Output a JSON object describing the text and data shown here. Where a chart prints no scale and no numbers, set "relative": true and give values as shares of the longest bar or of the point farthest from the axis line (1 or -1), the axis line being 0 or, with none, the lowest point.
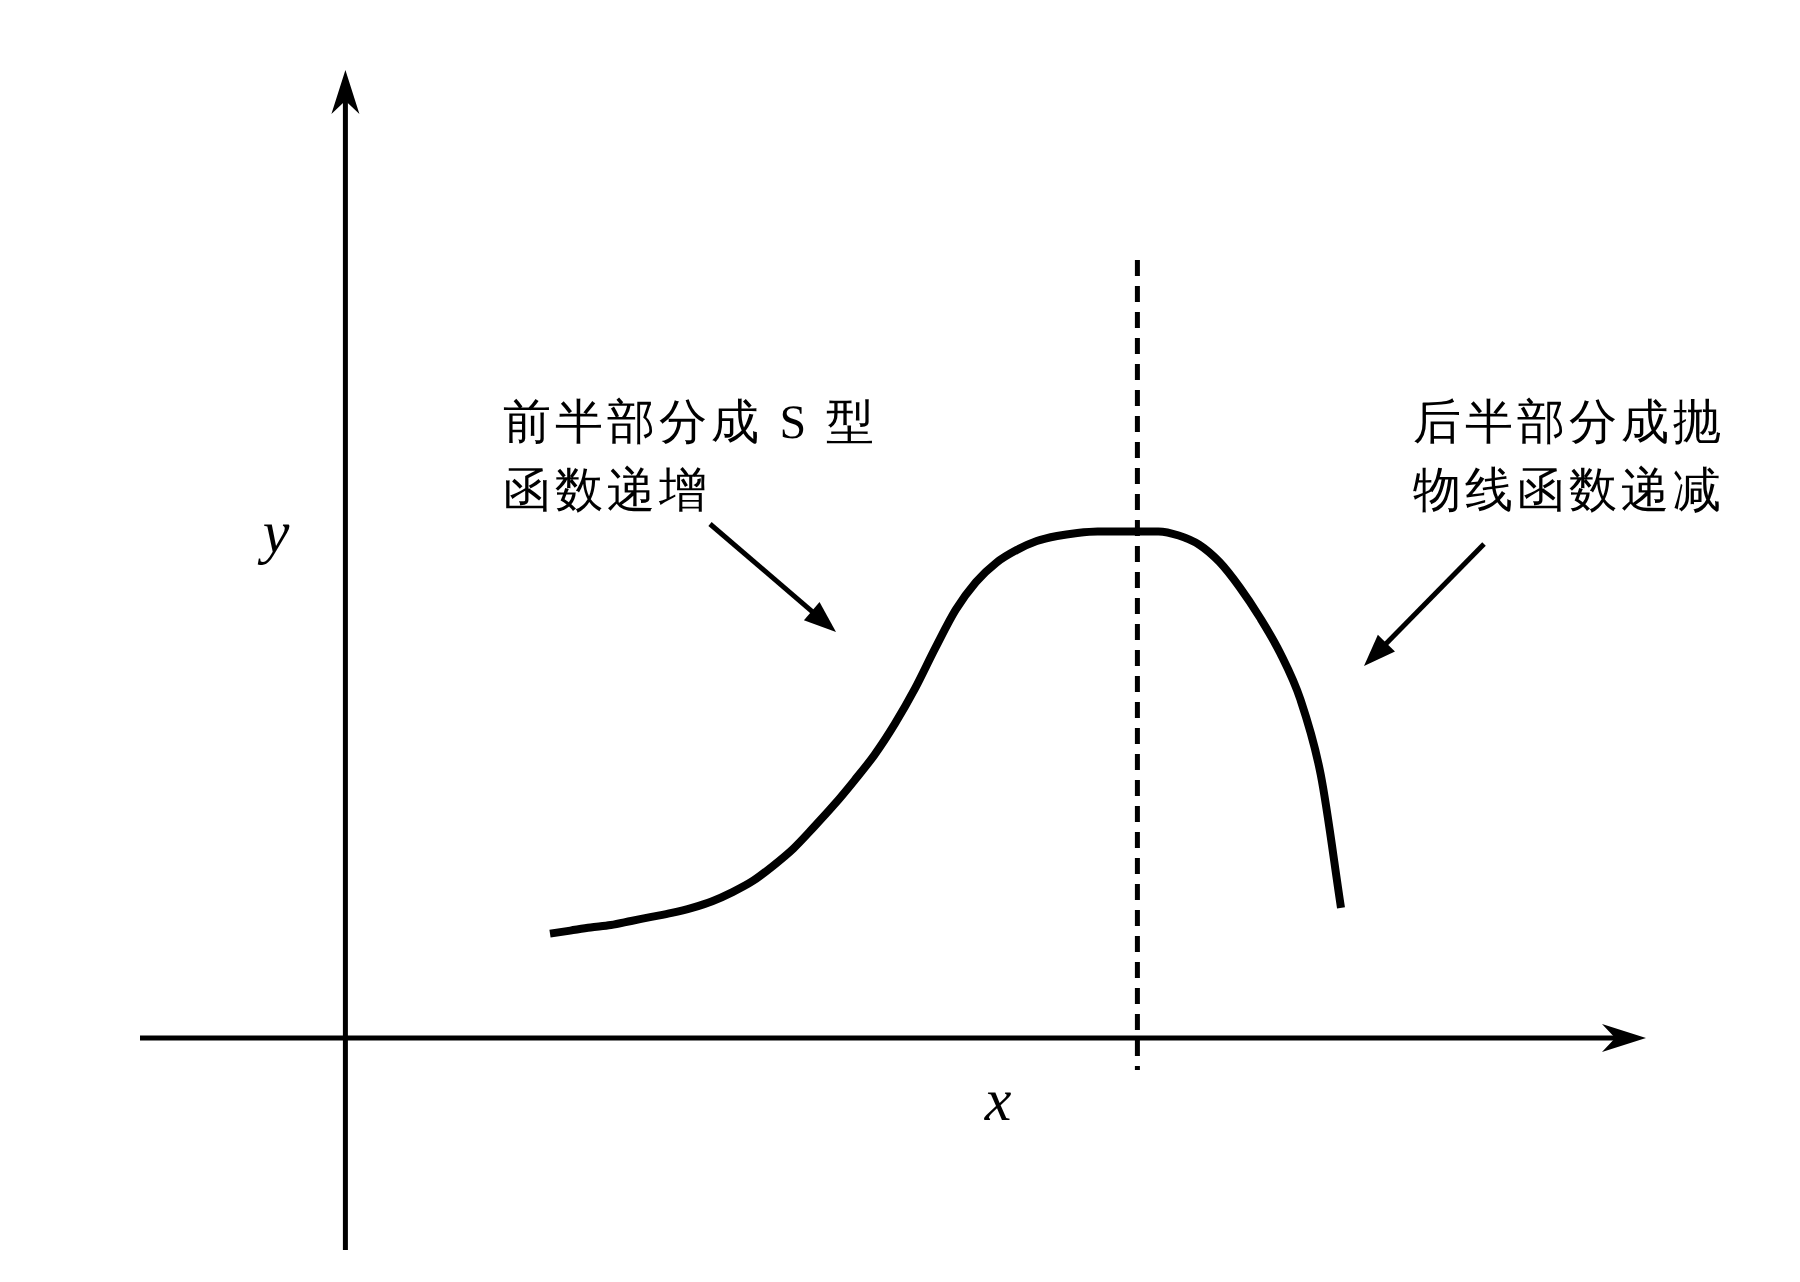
{
  "chart_data": {
    "type": "line",
    "relative": true,
    "xlabel": "x",
    "ylabel": "y",
    "categories": [
      null,
      null,
      null,
      null,
      null,
      null,
      null,
      null,
      null,
      null,
      null,
      null,
      null,
      null,
      null,
      null,
      null,
      null,
      null,
      null,
      null,
      null,
      null,
      null,
      null,
      null,
      null,
      null,
      null,
      null,
      null,
      null,
      null,
      null,
      null,
      null,
      null,
      null,
      null,
      null
    ],
    "series": [
      {
        "color": "#000000",
        "values": [
          0.206,
          0.212,
          0.218,
          0.223,
          0.231,
          0.239,
          0.247,
          0.257,
          0.27,
          0.288,
          0.31,
          0.34,
          0.374,
          0.416,
          0.46,
          0.508,
          0.559,
          0.62,
          0.69,
          0.77,
          0.845,
          0.9,
          0.938,
          0.963,
          0.981,
          0.991,
          0.997,
          1.0,
          1.0,
          1.0,
          1.0,
          0.992,
          0.974,
          0.94,
          0.89,
          0.83,
          0.76,
          0.668,
          0.52,
          0.257
        ]
      }
    ],
    "annotations": [
      "前半部分成 S 型函数递增",
      "后半部分成抛物线函数递减"
    ]
  }
}
